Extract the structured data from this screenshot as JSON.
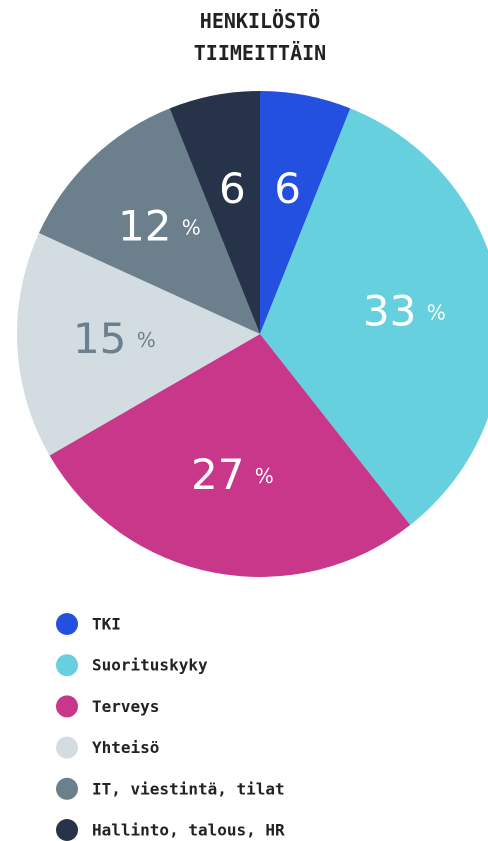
{
  "chart_data": {
    "type": "pie",
    "title": [
      "HENKILÖSTÖ",
      "TIIMEITTÄIN"
    ],
    "categories": [
      "TKI",
      "Suorituskyky",
      "Terveys",
      "Yhteisö",
      "IT, viestintä, tilat",
      "Hallinto, talous, HR"
    ],
    "values": [
      6,
      33,
      27,
      15,
      12,
      6
    ],
    "value_labels": [
      "6",
      "33 %",
      "27 %",
      "15 %",
      "12 %",
      "6"
    ],
    "colors": [
      "#2450e0",
      "#67d0de",
      "#c9378a",
      "#d3dde1",
      "#6b7f8d",
      "#263349"
    ],
    "label_colors": [
      "#ffffff",
      "#ffffff",
      "#ffffff",
      "#6b7f8d",
      "#ffffff",
      "#ffffff"
    ]
  }
}
